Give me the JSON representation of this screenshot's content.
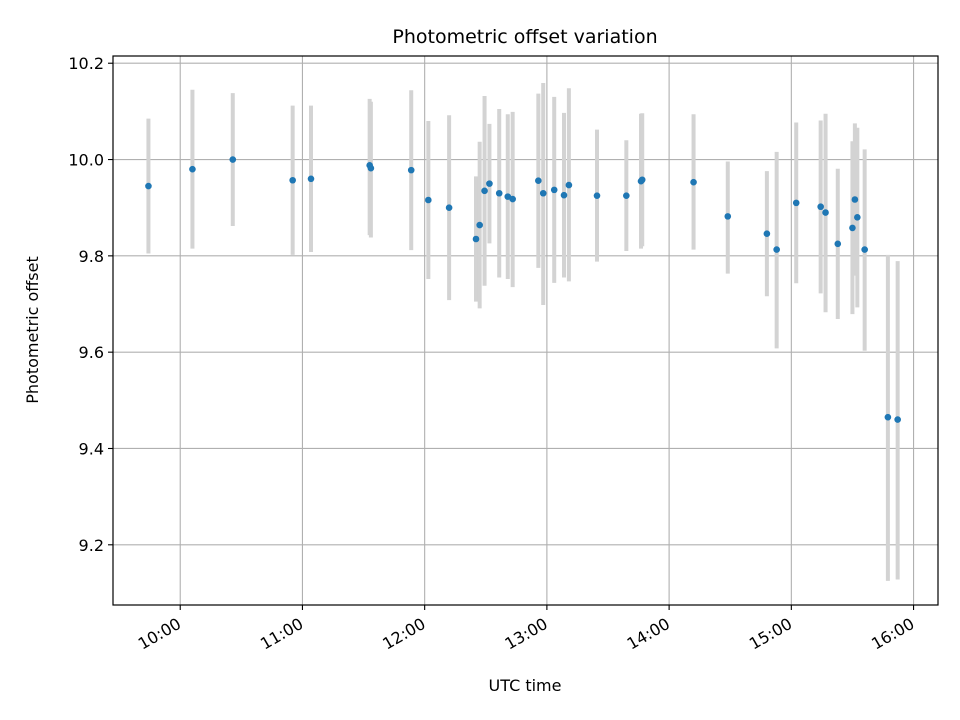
{
  "chart_data": {
    "type": "scatter",
    "title": "Photometric offset variation",
    "xlabel": "UTC time",
    "ylabel": "Photometric offset",
    "x_unit": "hours UTC",
    "xlim": [
      9.45,
      16.2
    ],
    "ylim": [
      9.075,
      10.215
    ],
    "grid": true,
    "xticks": [
      {
        "value": 10,
        "label": "10:00"
      },
      {
        "value": 11,
        "label": "11:00"
      },
      {
        "value": 12,
        "label": "12:00"
      },
      {
        "value": 13,
        "label": "13:00"
      },
      {
        "value": 14,
        "label": "14:00"
      },
      {
        "value": 15,
        "label": "15:00"
      },
      {
        "value": 16,
        "label": "16:00"
      }
    ],
    "yticks": [
      {
        "value": 9.2,
        "label": "9.2"
      },
      {
        "value": 9.4,
        "label": "9.4"
      },
      {
        "value": 9.6,
        "label": "9.6"
      },
      {
        "value": 9.8,
        "label": "9.8"
      },
      {
        "value": 10.0,
        "label": "10.0"
      },
      {
        "value": 10.2,
        "label": "10.2"
      }
    ],
    "colors": {
      "point": "#1f77b4",
      "errorbar": "#d3d3d3",
      "grid": "#b0b0b0"
    },
    "points": [
      {
        "x": 9.74,
        "y": 9.945,
        "lo": 9.805,
        "hi": 10.085
      },
      {
        "x": 10.1,
        "y": 9.98,
        "lo": 9.815,
        "hi": 10.145
      },
      {
        "x": 10.43,
        "y": 10.0,
        "lo": 9.862,
        "hi": 10.138
      },
      {
        "x": 10.92,
        "y": 9.957,
        "lo": 9.802,
        "hi": 10.112
      },
      {
        "x": 11.07,
        "y": 9.96,
        "lo": 9.808,
        "hi": 10.112
      },
      {
        "x": 11.55,
        "y": 9.988,
        "lo": 9.843,
        "hi": 10.126
      },
      {
        "x": 11.56,
        "y": 9.982,
        "lo": 9.838,
        "hi": 10.12
      },
      {
        "x": 11.89,
        "y": 9.978,
        "lo": 9.812,
        "hi": 10.144
      },
      {
        "x": 12.03,
        "y": 9.916,
        "lo": 9.752,
        "hi": 10.08
      },
      {
        "x": 12.2,
        "y": 9.9,
        "lo": 9.708,
        "hi": 10.092
      },
      {
        "x": 12.42,
        "y": 9.835,
        "lo": 9.705,
        "hi": 9.965
      },
      {
        "x": 12.45,
        "y": 9.864,
        "lo": 9.691,
        "hi": 10.037
      },
      {
        "x": 12.49,
        "y": 9.935,
        "lo": 9.738,
        "hi": 10.132
      },
      {
        "x": 12.53,
        "y": 9.95,
        "lo": 9.826,
        "hi": 10.074
      },
      {
        "x": 12.61,
        "y": 9.93,
        "lo": 9.755,
        "hi": 10.105
      },
      {
        "x": 12.68,
        "y": 9.923,
        "lo": 9.752,
        "hi": 10.094
      },
      {
        "x": 12.72,
        "y": 9.918,
        "lo": 9.735,
        "hi": 10.099
      },
      {
        "x": 12.93,
        "y": 9.956,
        "lo": 9.775,
        "hi": 10.137
      },
      {
        "x": 12.97,
        "y": 9.93,
        "lo": 9.698,
        "hi": 10.159
      },
      {
        "x": 13.06,
        "y": 9.937,
        "lo": 9.744,
        "hi": 10.13
      },
      {
        "x": 13.14,
        "y": 9.926,
        "lo": 9.755,
        "hi": 10.097
      },
      {
        "x": 13.18,
        "y": 9.947,
        "lo": 9.747,
        "hi": 10.148
      },
      {
        "x": 13.41,
        "y": 9.925,
        "lo": 9.788,
        "hi": 10.062
      },
      {
        "x": 13.65,
        "y": 9.925,
        "lo": 9.81,
        "hi": 10.04
      },
      {
        "x": 13.77,
        "y": 9.955,
        "lo": 9.815,
        "hi": 10.095
      },
      {
        "x": 13.78,
        "y": 9.958,
        "lo": 9.82,
        "hi": 10.096
      },
      {
        "x": 14.2,
        "y": 9.953,
        "lo": 9.813,
        "hi": 10.094
      },
      {
        "x": 14.48,
        "y": 9.882,
        "lo": 9.763,
        "hi": 9.996
      },
      {
        "x": 14.8,
        "y": 9.846,
        "lo": 9.716,
        "hi": 9.976
      },
      {
        "x": 14.88,
        "y": 9.813,
        "lo": 9.608,
        "hi": 10.016
      },
      {
        "x": 15.04,
        "y": 9.91,
        "lo": 9.743,
        "hi": 10.077
      },
      {
        "x": 15.24,
        "y": 9.902,
        "lo": 9.722,
        "hi": 10.081
      },
      {
        "x": 15.28,
        "y": 9.89,
        "lo": 9.683,
        "hi": 10.095
      },
      {
        "x": 15.38,
        "y": 9.825,
        "lo": 9.669,
        "hi": 9.981
      },
      {
        "x": 15.5,
        "y": 9.858,
        "lo": 9.679,
        "hi": 10.038
      },
      {
        "x": 15.52,
        "y": 9.917,
        "lo": 9.759,
        "hi": 10.075
      },
      {
        "x": 15.54,
        "y": 9.88,
        "lo": 9.693,
        "hi": 10.066
      },
      {
        "x": 15.6,
        "y": 9.813,
        "lo": 9.603,
        "hi": 10.021
      },
      {
        "x": 15.79,
        "y": 9.465,
        "lo": 9.125,
        "hi": 9.802
      },
      {
        "x": 15.87,
        "y": 9.46,
        "lo": 9.128,
        "hi": 9.789
      }
    ]
  }
}
